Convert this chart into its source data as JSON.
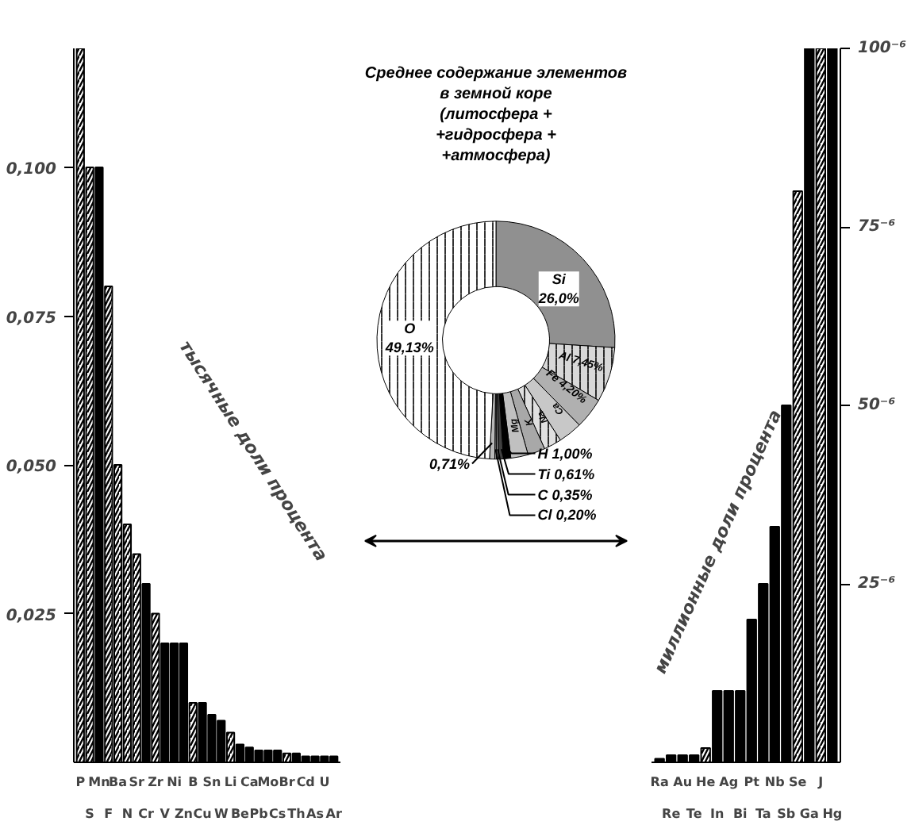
{
  "chart_data": [
    {
      "type": "bar",
      "ylabel": "тысячные доли процента",
      "categories": [
        "P",
        "S",
        "Mn",
        "F",
        "Ba",
        "N",
        "Sr",
        "Cr",
        "Zr",
        "V",
        "Ni",
        "Zn",
        "B",
        "Cu",
        "Sn",
        "W",
        "Li",
        "Be",
        "Ca",
        "Pb",
        "Mo",
        "Cs",
        "Br",
        "Th",
        "Cd",
        "As",
        "U",
        "Ar"
      ],
      "values": [
        0.12,
        0.1,
        0.1,
        0.08,
        0.05,
        0.04,
        0.035,
        0.03,
        0.025,
        0.02,
        0.02,
        0.02,
        0.01,
        0.01,
        0.008,
        0.007,
        0.005,
        0.003,
        0.0025,
        0.002,
        0.002,
        0.002,
        0.0015,
        0.0015,
        0.001,
        0.001,
        0.001,
        0.001
      ],
      "colors": [
        "#ffffff",
        "#ffffff",
        "#000000",
        "#ffffff",
        "#ffffff",
        "#ffffff",
        "#ffffff",
        "#000000",
        "#ffffff",
        "#000000",
        "#000000",
        "#000000",
        "#ffffff",
        "#000000",
        "#000000",
        "#000000",
        "#ffffff",
        "#000000",
        "#000000",
        "#000000",
        "#000000",
        "#000000",
        "#ffffff",
        "#000000",
        "#000000",
        "#000000",
        "#000000",
        "#000000"
      ],
      "ylim": [
        0,
        0.12
      ],
      "yticks": [
        {
          "value": 0.025,
          "label": "0,025"
        },
        {
          "value": 0.05,
          "label": "0,050"
        },
        {
          "value": 0.075,
          "label": "0,075"
        },
        {
          "value": 0.1,
          "label": "0,100"
        }
      ],
      "grid": false
    },
    {
      "type": "donut",
      "title": "Среднее содержание элементов\nв земной коре\n(литосфера +\n+гидросфера +\n+атмосфера)",
      "categories": [
        "Si",
        "Al",
        "Fe",
        "Ca",
        "Na",
        "K",
        "Mg",
        "H",
        "Ti",
        "C",
        "Cl",
        null,
        "O"
      ],
      "values": [
        26.0,
        7.45,
        4.2,
        3.25,
        2.4,
        2.35,
        2.35,
        1.0,
        0.61,
        0.35,
        0.2,
        0.71,
        49.13
      ],
      "value_labels": [
        "26,0%",
        "7,45%",
        "4,20%",
        null,
        null,
        null,
        null,
        "1,00%",
        "0,61%",
        "0,35%",
        "0,20%",
        "0,71%",
        "49,13%"
      ],
      "colors": [
        "#909090",
        "#d8d8d8",
        "#b0b0b0",
        "#c8c8c8",
        "#e0e0e0",
        "#a8a8a8",
        "#c0c0c0",
        "#000000",
        "#404040",
        "#707070",
        "#989898",
        "#b8b8b8",
        "#ffffff"
      ]
    },
    {
      "type": "bar",
      "ylabel": "миллионные доли процента",
      "categories": [
        "Ra",
        "Re",
        "Au",
        "Te",
        "He",
        "In",
        "Ag",
        "Bi",
        "Pt",
        "Ta",
        "Nb",
        "Sb",
        "Se",
        "Ga",
        "J",
        "Hg"
      ],
      "values": [
        0.5,
        1,
        1,
        1,
        2,
        10,
        10,
        10,
        20,
        25,
        33,
        50,
        80,
        100,
        100,
        100
      ],
      "colors": [
        "#000000",
        "#000000",
        "#000000",
        "#000000",
        "#ffffff",
        "#000000",
        "#000000",
        "#000000",
        "#000000",
        "#000000",
        "#000000",
        "#000000",
        "#ffffff",
        "#000000",
        "#ffffff",
        "#000000"
      ],
      "ylim": [
        0,
        100
      ],
      "yticks": [
        {
          "value": 25,
          "label": "25⁻⁶"
        },
        {
          "value": 50,
          "label": "50⁻⁶"
        },
        {
          "value": 75,
          "label": "75⁻⁶"
        },
        {
          "value": 100,
          "label": "100⁻⁶"
        }
      ],
      "grid": false
    }
  ]
}
